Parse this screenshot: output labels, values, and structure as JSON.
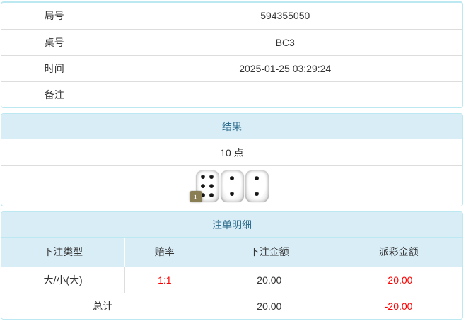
{
  "info_table": {
    "rows": [
      {
        "label": "局号",
        "value": "594355050"
      },
      {
        "label": "桌号",
        "value": "BC3"
      },
      {
        "label": "时间",
        "value": "2025-01-25 03:29:24"
      },
      {
        "label": "备注",
        "value": ""
      }
    ]
  },
  "result_panel": {
    "title": "结果",
    "points": "10 点",
    "dice": [
      6,
      2,
      2
    ],
    "info_badge_label": "i"
  },
  "bets_panel": {
    "title": "注单明细",
    "columns": [
      "下注类型",
      "赔率",
      "下注金额",
      "派彩金额"
    ],
    "rows": [
      {
        "type": "大/小(大)",
        "odds": "1:1",
        "amount": "20.00",
        "payout": "-20.00"
      }
    ],
    "total": {
      "label": "总计",
      "amount": "20.00",
      "payout": "-20.00"
    }
  },
  "colors": {
    "header_bg": "#d9edf7",
    "header_text": "#31708f",
    "panel_border": "#bce8f1",
    "row_border": "#dddddd",
    "text": "#333333",
    "negative": "#ff0000",
    "badge_bg": "#8a7e55"
  }
}
